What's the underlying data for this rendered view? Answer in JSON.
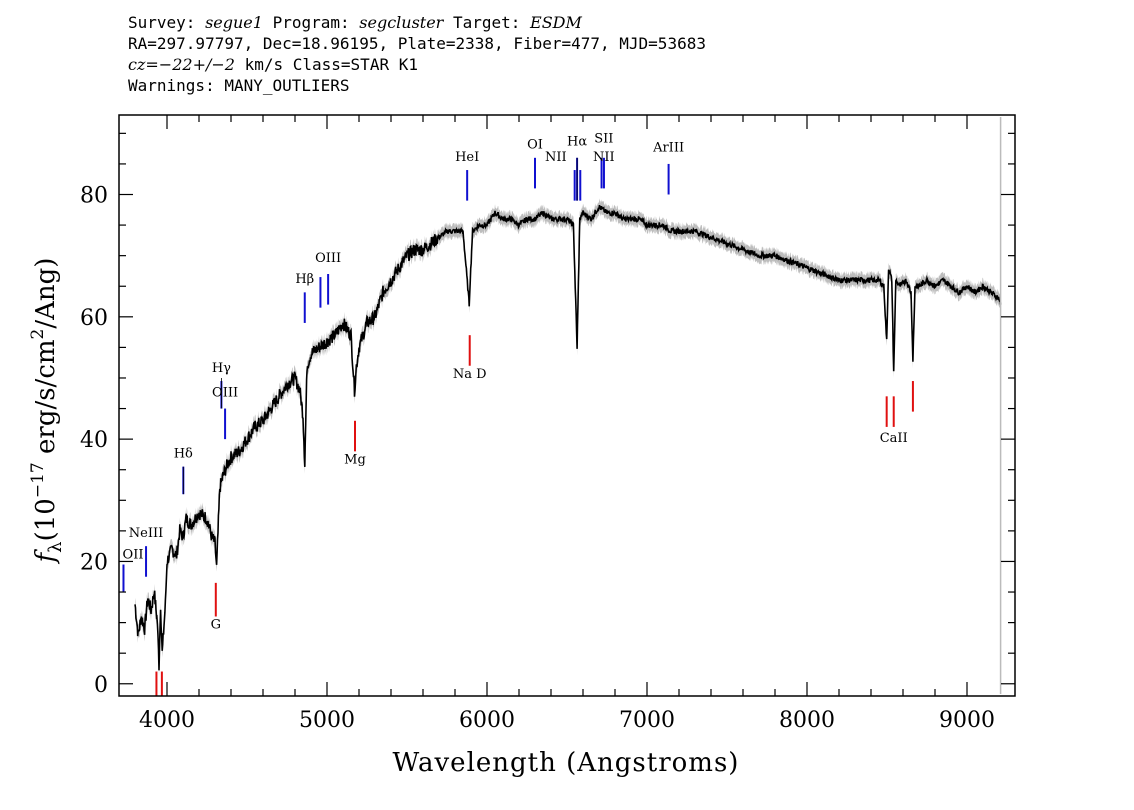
{
  "header": {
    "line1_a": "Survey: ",
    "survey": "segue1",
    "line1_b": " Program: ",
    "program": "segcluster",
    "line1_c": " Target: ",
    "target": "ESDM",
    "line2": "RA=297.97797, Dec=18.96195, Plate=2338, Fiber=477, MJD=53683",
    "line3_cz": "cz=−22+/−2",
    "line3_rest": " km/s Class=STAR K1",
    "line4": "Warnings: MANY_OUTLIERS"
  },
  "colors": {
    "emission": "#1010d0",
    "absorption": "#e01010",
    "spectrum": "#000000",
    "error_band": "#bdbdbd"
  },
  "chart_data": {
    "type": "line",
    "xlabel": "Wavelength (Angstroms)",
    "ylabel_parts": {
      "f": "f",
      "sub": "λ",
      "a": "(10",
      "exp1": "−17",
      "b": " erg/s/cm",
      "exp2": "2",
      "c": "/Ang)"
    },
    "xlim": [
      3700,
      9300
    ],
    "ylim": [
      -2,
      93
    ],
    "x_ticks": [
      4000,
      5000,
      6000,
      7000,
      8000,
      9000
    ],
    "x_tick_labels": [
      "4000",
      "5000",
      "6000",
      "7000",
      "8000",
      "9000"
    ],
    "y_ticks": [
      0,
      20,
      40,
      60,
      80
    ],
    "y_tick_labels": [
      "0",
      "20",
      "40",
      "60",
      "80"
    ],
    "grid": false,
    "series": [
      {
        "x": [
          3800,
          3820,
          3840,
          3860,
          3880,
          3900,
          3920,
          3940,
          3950,
          3960,
          3970,
          3990,
          4000,
          4030,
          4060,
          4080,
          4100,
          4120,
          4150,
          4200,
          4250,
          4280,
          4300,
          4310,
          4330,
          4350,
          4380,
          4400,
          4450,
          4500,
          4550,
          4600,
          4650,
          4700,
          4750,
          4800,
          4830,
          4850,
          4861,
          4875,
          4900,
          4950,
          5000,
          5050,
          5100,
          5150,
          5172,
          5184,
          5200,
          5250,
          5300,
          5350,
          5400,
          5450,
          5500,
          5550,
          5600,
          5650,
          5700,
          5750,
          5800,
          5850,
          5889,
          5895,
          5910,
          5950,
          6000,
          6050,
          6100,
          6150,
          6200,
          6250,
          6300,
          6350,
          6400,
          6450,
          6500,
          6540,
          6563,
          6580,
          6600,
          6650,
          6700,
          6750,
          6800,
          6850,
          6900,
          6950,
          7000,
          7050,
          7100,
          7150,
          7200,
          7300,
          7400,
          7500,
          7600,
          7700,
          7800,
          7900,
          8000,
          8100,
          8200,
          8300,
          8400,
          8450,
          8480,
          8498,
          8510,
          8530,
          8542,
          8555,
          8580,
          8620,
          8650,
          8662,
          8675,
          8700,
          8750,
          8800,
          8850,
          8900,
          8950,
          9000,
          9050,
          9100,
          9150,
          9200,
          9210
        ],
        "y": [
          13,
          8,
          11,
          9,
          14,
          12,
          15,
          10,
          3,
          13,
          5,
          13,
          20,
          22,
          21,
          25,
          24,
          27,
          26,
          28,
          27,
          24,
          23,
          19,
          32,
          34,
          36,
          37,
          38,
          40,
          42,
          43,
          45,
          47,
          49,
          50,
          48,
          44,
          36,
          52,
          54,
          55,
          56,
          57,
          59,
          57,
          48,
          52,
          55,
          59,
          60,
          64,
          66,
          68,
          70,
          71,
          71,
          72,
          73,
          74,
          74,
          74,
          62,
          66,
          74,
          75,
          75,
          77,
          76,
          76,
          75,
          76,
          76,
          77,
          76,
          76,
          76,
          75,
          55,
          76,
          77,
          76,
          78,
          77,
          77,
          76,
          76,
          76,
          75,
          75,
          75,
          74,
          74,
          74,
          73,
          72,
          71,
          70,
          70,
          69,
          68,
          67,
          66,
          66,
          66,
          66,
          65,
          56,
          68,
          66,
          51,
          66,
          65,
          66,
          64,
          53,
          65,
          65,
          66,
          65,
          66,
          65,
          64,
          65,
          64,
          65,
          64,
          63,
          62
        ]
      }
    ],
    "lines_emission": [
      {
        "label": "OII",
        "wave": 3728,
        "y1": 15,
        "y2": 19.5
      },
      {
        "label": "NeIII",
        "wave": 3869,
        "y1": 17.5,
        "y2": 22.5
      },
      {
        "label": "Hδ",
        "wave": 4102,
        "y1": 31,
        "y2": 35.5
      },
      {
        "label": "Hγ",
        "wave": 4340,
        "y1": 45,
        "y2": 49.5
      },
      {
        "label": "OIII",
        "wave": 4363,
        "y1": 40,
        "y2": 45
      },
      {
        "label": "Hβ",
        "wave": 4861,
        "y1": 59,
        "y2": 64
      },
      {
        "label": "OIII",
        "wave": 4959,
        "y1": 61.5,
        "y2": 66.5
      },
      {
        "label": "OIII",
        "wave": 5007,
        "y1": 62,
        "y2": 67
      },
      {
        "label": "HeI",
        "wave": 5876,
        "y1": 79,
        "y2": 84
      },
      {
        "label": "OI",
        "wave": 6300,
        "y1": 81,
        "y2": 86
      },
      {
        "label": "NII",
        "wave": 6548,
        "y1": 79,
        "y2": 84
      },
      {
        "label": "Hα",
        "wave": 6563,
        "y1": 79,
        "y2": 86
      },
      {
        "label": "NII",
        "wave": 6583,
        "y1": 79,
        "y2": 84
      },
      {
        "label": "SII",
        "wave": 6716,
        "y1": 81,
        "y2": 86
      },
      {
        "label": "SII",
        "wave": 6731,
        "y1": 81,
        "y2": 86
      },
      {
        "label": "ArIII",
        "wave": 7135,
        "y1": 80,
        "y2": 85
      }
    ],
    "lines_absorption": [
      {
        "label": "Na D",
        "wave": 5892,
        "y1": 52,
        "y2": 57
      },
      {
        "label": "Mg",
        "wave": 5175,
        "y1": 38,
        "y2": 43
      },
      {
        "label": "G",
        "wave": 4305,
        "y1": 11,
        "y2": 16.5
      },
      {
        "label": "CaII",
        "wave": 8498,
        "y1": 42,
        "y2": 47
      },
      {
        "label": "CaII",
        "wave": 8542,
        "y1": 42,
        "y2": 47
      },
      {
        "label": "CaII",
        "wave": 8662,
        "y1": 44.5,
        "y2": 49.5
      },
      {
        "label": "K",
        "wave": 3934,
        "y1": -2,
        "y2": 2
      },
      {
        "label": "H",
        "wave": 3968,
        "y1": -2,
        "y2": 2
      }
    ],
    "line_labels": [
      {
        "text": "OII",
        "wave": 3728,
        "y": 20.5
      },
      {
        "text": "NeIII",
        "wave": 3869,
        "y": 24
      },
      {
        "text": "Hδ",
        "wave": 4102,
        "y": 37
      },
      {
        "text": "Hγ",
        "wave": 4340,
        "y": 51
      },
      {
        "text": "OIII",
        "wave": 4363,
        "y": 47
      },
      {
        "text": "Hβ",
        "wave": 4861,
        "y": 65.5
      },
      {
        "text": "OIII",
        "wave": 5007,
        "y": 69
      },
      {
        "text": "HeI",
        "wave": 5876,
        "y": 85.5
      },
      {
        "text": "OI",
        "wave": 6300,
        "y": 87.5
      },
      {
        "text": "NII",
        "wave": 6430,
        "y": 85.5
      },
      {
        "text": "Hα",
        "wave": 6563,
        "y": 88
      },
      {
        "text": "SII",
        "wave": 6730,
        "y": 88.5
      },
      {
        "text": "NII",
        "wave": 6730,
        "y": 85.5
      },
      {
        "text": "ArIII",
        "wave": 7135,
        "y": 87
      },
      {
        "text": "Na D",
        "wave": 5892,
        "y": 50
      },
      {
        "text": "Mg",
        "wave": 5175,
        "y": 36
      },
      {
        "text": "G",
        "wave": 4305,
        "y": 9
      },
      {
        "text": "CaII",
        "wave": 8542,
        "y": 39.5
      }
    ]
  }
}
